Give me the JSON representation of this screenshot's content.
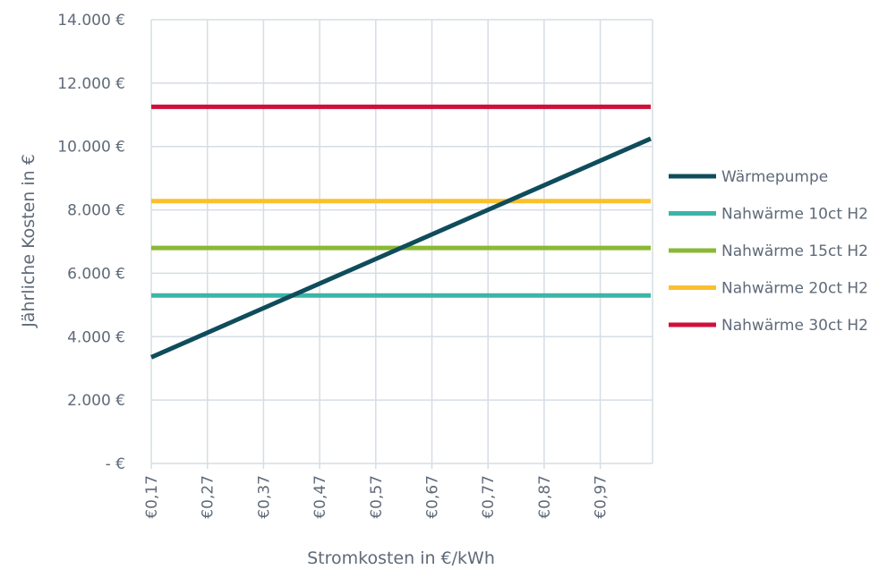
{
  "chart_data": {
    "type": "line",
    "xlabel": "Stromkosten in €/kWh",
    "ylabel": "Jährliche Kosten in €",
    "ylim": [
      0,
      14000
    ],
    "xlim": [
      0.17,
      1.06
    ],
    "y_ticks": [
      0,
      2000,
      4000,
      6000,
      8000,
      10000,
      12000,
      14000
    ],
    "y_tick_labels": [
      "-   €",
      "2.000 €",
      "4.000 €",
      "6.000 €",
      "8.000 €",
      "10.000 €",
      "12.000 €",
      "14.000 €"
    ],
    "x_ticks": [
      0.17,
      0.27,
      0.37,
      0.47,
      0.57,
      0.67,
      0.77,
      0.87,
      0.97
    ],
    "x_tick_labels": [
      "€0,17",
      "€0,27",
      "€0,37",
      "€0,47",
      "€0,57",
      "€0,67",
      "€0,77",
      "€0,87",
      "€0,97"
    ],
    "grid": true,
    "legend_position": "right",
    "series": [
      {
        "name": "Wärmepumpe",
        "color": "#0f4c5c",
        "x": [
          0.17,
          1.06
        ],
        "y": [
          3350,
          10250
        ]
      },
      {
        "name": "Nahwärme 10ct H2",
        "color": "#3bb5a8",
        "x": [
          0.17,
          1.06
        ],
        "y": [
          5300,
          5300
        ]
      },
      {
        "name": "Nahwärme 15ct H2",
        "color": "#8ab834",
        "x": [
          0.17,
          1.06
        ],
        "y": [
          6800,
          6800
        ]
      },
      {
        "name": "Nahwärme 20ct H2",
        "color": "#fbc02d",
        "x": [
          0.17,
          1.06
        ],
        "y": [
          8280,
          8280
        ]
      },
      {
        "name": "Nahwärme 30ct H2",
        "color": "#d0103a",
        "x": [
          0.17,
          1.06
        ],
        "y": [
          11250,
          11250
        ]
      }
    ]
  }
}
